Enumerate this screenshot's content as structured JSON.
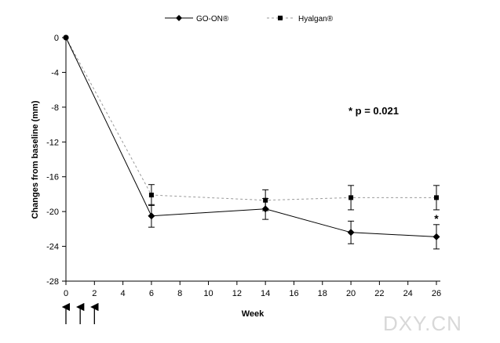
{
  "chart_data": {
    "type": "line",
    "xlabel": "Week",
    "ylabel": "Changes from baseline (mm)",
    "xlim": [
      0,
      26
    ],
    "ylim": [
      -28,
      0
    ],
    "x_ticks": [
      "0",
      "2",
      "4",
      "6",
      "8",
      "10",
      "12",
      "14",
      "16",
      "18",
      "20",
      "22",
      "24",
      "26"
    ],
    "y_ticks": [
      "0",
      "-4",
      "-8",
      "-12",
      "-16",
      "-20",
      "-24",
      "-28"
    ],
    "grid": false,
    "legend_position": "top-center",
    "series": [
      {
        "name": "GO-ON®",
        "marker": "diamond",
        "line_style": "solid",
        "color": "#000000",
        "x": [
          0,
          6,
          14,
          20,
          26
        ],
        "y": [
          0,
          -20.5,
          -19.7,
          -22.4,
          -22.9
        ],
        "err": [
          0,
          1.3,
          1.2,
          1.3,
          1.4
        ]
      },
      {
        "name": "Hyalgan®",
        "marker": "square",
        "line_style": "dashed",
        "color": "#999999",
        "x": [
          0,
          6,
          14,
          20,
          26
        ],
        "y": [
          0,
          -18.1,
          -18.7,
          -18.4,
          -18.4
        ],
        "err": [
          0,
          1.2,
          1.2,
          1.4,
          1.4
        ]
      }
    ],
    "annotations": [
      {
        "text": "* p = 0.021",
        "position": "upper-right"
      },
      {
        "text": "*",
        "x": 26,
        "y": -20.7
      }
    ],
    "injection_weeks": [
      0,
      1,
      2
    ]
  },
  "watermark": "DXY.CN"
}
